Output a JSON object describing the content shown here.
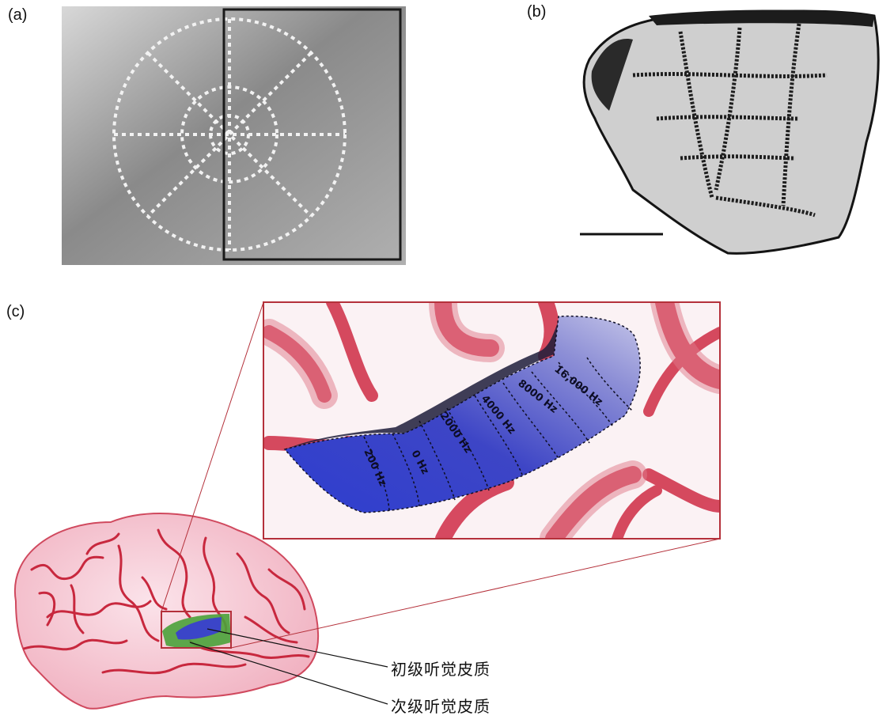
{
  "panels": {
    "a": {
      "label": "(a)"
    },
    "b": {
      "label": "(b)"
    },
    "c": {
      "label": "(c)"
    }
  },
  "frequency_labels": [
    "16,000 Hz",
    "8000 Hz",
    "4000 Hz",
    "2000 Hz",
    "0 Hz",
    "200 Hz"
  ],
  "callouts": {
    "primary": "初级听觉皮质",
    "secondary": "次级听觉皮质"
  },
  "colors": {
    "tonotopic_high": "#b9b9e3",
    "tonotopic_low": "#2f3fd0",
    "sulci": "#c8283e",
    "brain_fill": "#f5c3cf",
    "secondary_area": "#4aa23a",
    "zoom_frame": "#b4303a"
  }
}
